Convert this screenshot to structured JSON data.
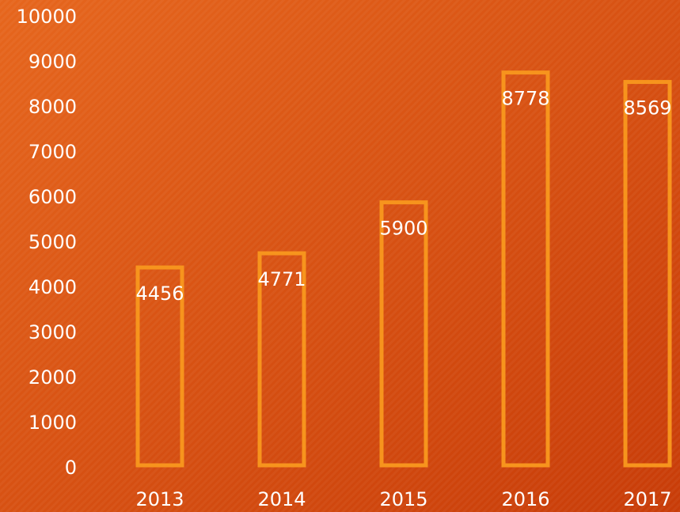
{
  "chart_data": {
    "type": "bar",
    "categories": [
      "2013",
      "2014",
      "2015",
      "2016",
      "2017"
    ],
    "values": [
      4456,
      4771,
      5900,
      8778,
      8569
    ],
    "color": "#f7941d",
    "ylim": [
      0,
      10000
    ],
    "yticks": [
      0,
      1000,
      2000,
      3000,
      4000,
      5000,
      6000,
      7000,
      8000,
      9000,
      10000
    ],
    "grid": false
  }
}
